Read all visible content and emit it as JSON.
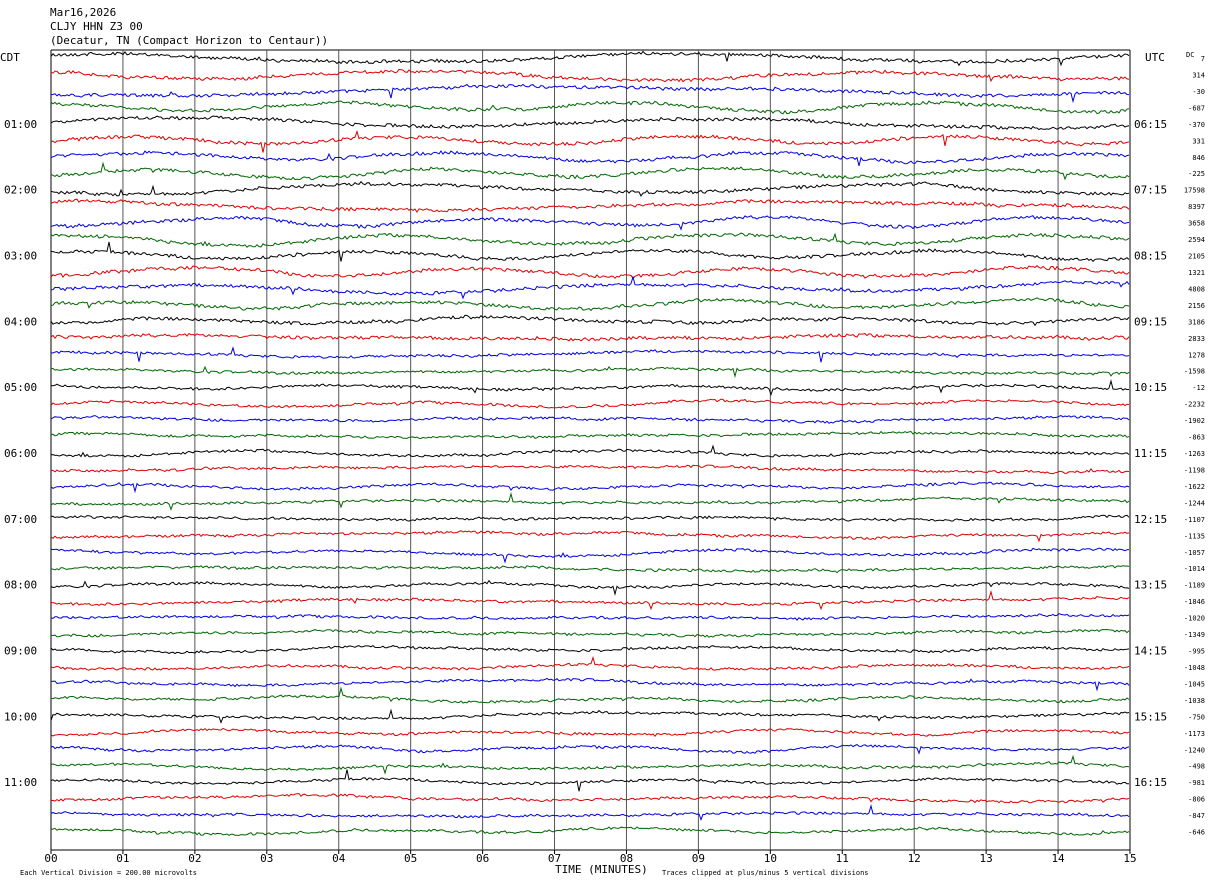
{
  "header": {
    "date": "Mar16,2026",
    "station": "CLJY HHN Z3 00",
    "location": "(Decatur, TN (Compact Horizon to Centaur))"
  },
  "left_tz": "CDT",
  "right_tz": "UTC",
  "dc_label": "DC",
  "footer": {
    "scale_note": "Each Vertical Division =  200.00 microvolts",
    "xlabel": "TIME (MINUTES)",
    "clip_note": "Traces clipped at plus/minus 5 vertical divisions"
  },
  "colors": {
    "black": "#000000",
    "red": "#dd0000",
    "blue": "#0000dd",
    "green": "#006600",
    "grid": "#555555"
  },
  "chart_data": {
    "type": "line",
    "title": "CLJY HHN Z3 00",
    "xlabel": "TIME (MINUTES)",
    "xlim": [
      0,
      15
    ],
    "x_ticks": [
      "00",
      "01",
      "02",
      "03",
      "04",
      "05",
      "06",
      "07",
      "08",
      "09",
      "10",
      "11",
      "12",
      "13",
      "14",
      "15"
    ],
    "left_time_labels": [
      "01:00",
      "02:00",
      "03:00",
      "04:00",
      "05:00",
      "06:00",
      "07:00",
      "08:00",
      "09:00",
      "10:00",
      "11:00"
    ],
    "right_time_labels": [
      "06:15",
      "07:15",
      "08:15",
      "09:15",
      "10:15",
      "11:15",
      "12:15",
      "13:15",
      "14:15",
      "15:15",
      "16:15"
    ],
    "trace_colors": [
      "black",
      "red",
      "blue",
      "green"
    ],
    "dc_offsets": [
      "7",
      "314",
      "-30",
      "-687",
      "-370",
      "331",
      "846",
      "-225",
      "17598",
      "8397",
      "3658",
      "2594",
      "2105",
      "1321",
      "4808",
      "2156",
      "3186",
      "2833",
      "1278",
      "-1598",
      "-12",
      "-2232",
      "-1902",
      "-863",
      "-1263",
      "-1198",
      "-1622",
      "-1244",
      "-1107",
      "-1135",
      "-1057",
      "-1014",
      "-1189",
      "-1846",
      "-1020",
      "-1349",
      "-995",
      "-1048",
      "-1045",
      "-1038",
      "-750",
      "-1173",
      "-1240",
      "-498",
      "-981",
      "-806",
      "-847",
      "-646"
    ]
  }
}
